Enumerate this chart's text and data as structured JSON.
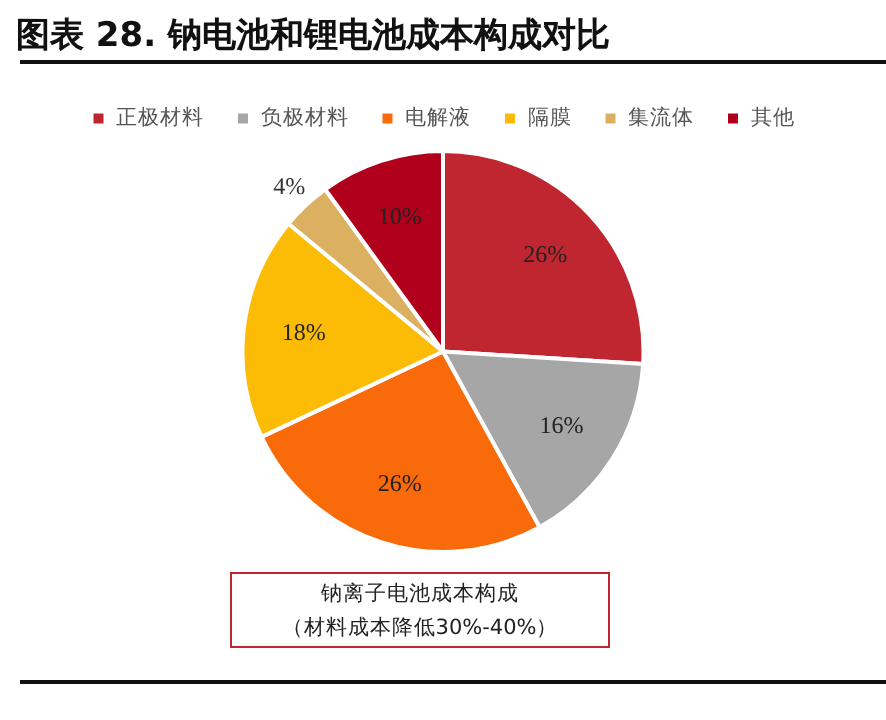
{
  "chart_data": {
    "type": "pie",
    "title": "图表 28. 钠电池和锂电池成本构成对比",
    "categories": [
      "正极材料",
      "负极材料",
      "电解液",
      "隔膜",
      "集流体",
      "其他"
    ],
    "values": [
      26,
      16,
      26,
      18,
      4,
      10
    ],
    "value_labels": [
      "26%",
      "16%",
      "26%",
      "18%",
      "4%",
      "10%"
    ],
    "colors": [
      "#c0262f",
      "#a6a6a6",
      "#f96a0a",
      "#fcbc05",
      "#dbb060",
      "#b0001c"
    ],
    "legend": "top",
    "annotations": [
      "钠离子电池成本构成",
      "（材料成本降低30%-40%）"
    ]
  }
}
